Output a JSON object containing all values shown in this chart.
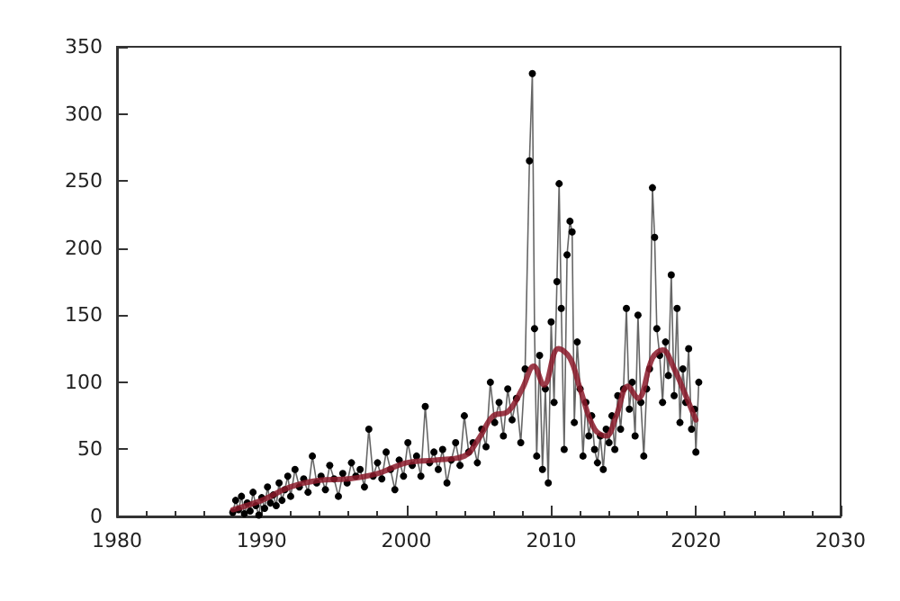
{
  "chart_data": {
    "type": "line",
    "xlim": [
      1980,
      2030
    ],
    "xticks": [
      1980,
      1990,
      2000,
      2010,
      2020,
      2030
    ],
    "ylim": [
      0,
      350
    ],
    "yticks": [
      0,
      50,
      100,
      150,
      200,
      250,
      300,
      350
    ],
    "grid": false,
    "series": [
      {
        "color": "#000000",
        "marker": "circle",
        "x": [
          1988.0,
          1988.2,
          1988.4,
          1988.6,
          1988.8,
          1989.0,
          1989.2,
          1989.4,
          1989.6,
          1989.8,
          1990.0,
          1990.2,
          1990.4,
          1990.6,
          1990.8,
          1991.0,
          1991.2,
          1991.4,
          1991.6,
          1991.8,
          1992.0,
          1992.3,
          1992.6,
          1992.9,
          1993.2,
          1993.5,
          1993.8,
          1994.1,
          1994.4,
          1994.7,
          1995.0,
          1995.3,
          1995.6,
          1995.9,
          1996.2,
          1996.5,
          1996.8,
          1997.1,
          1997.4,
          1997.7,
          1998.0,
          1998.3,
          1998.6,
          1998.9,
          1999.2,
          1999.5,
          1999.8,
          2000.1,
          2000.4,
          2000.7,
          2001.0,
          2001.3,
          2001.6,
          2001.9,
          2002.2,
          2002.5,
          2002.8,
          2003.1,
          2003.4,
          2003.7,
          2004.0,
          2004.3,
          2004.6,
          2004.9,
          2005.2,
          2005.5,
          2005.8,
          2006.1,
          2006.4,
          2006.7,
          2007.0,
          2007.3,
          2007.6,
          2007.9,
          2008.2,
          2008.5,
          2008.7,
          2008.85,
          2009.0,
          2009.2,
          2009.4,
          2009.6,
          2009.8,
          2010.0,
          2010.2,
          2010.4,
          2010.55,
          2010.7,
          2010.9,
          2011.1,
          2011.3,
          2011.45,
          2011.6,
          2011.8,
          2012.0,
          2012.2,
          2012.4,
          2012.6,
          2012.8,
          2013.0,
          2013.2,
          2013.4,
          2013.6,
          2013.8,
          2014.0,
          2014.2,
          2014.4,
          2014.6,
          2014.8,
          2015.0,
          2015.2,
          2015.4,
          2015.6,
          2015.8,
          2016.0,
          2016.2,
          2016.4,
          2016.6,
          2016.8,
          2017.0,
          2017.15,
          2017.3,
          2017.5,
          2017.7,
          2017.9,
          2018.1,
          2018.3,
          2018.5,
          2018.7,
          2018.9,
          2019.1,
          2019.3,
          2019.5,
          2019.7,
          2019.9,
          2020.0,
          2020.2
        ],
        "values": [
          3,
          12,
          5,
          15,
          2,
          10,
          4,
          18,
          8,
          1,
          14,
          6,
          22,
          10,
          16,
          8,
          25,
          12,
          20,
          30,
          15,
          35,
          22,
          28,
          18,
          45,
          25,
          30,
          20,
          38,
          28,
          15,
          32,
          25,
          40,
          30,
          35,
          22,
          65,
          30,
          40,
          28,
          48,
          35,
          20,
          42,
          30,
          55,
          38,
          45,
          30,
          82,
          40,
          48,
          35,
          50,
          25,
          42,
          55,
          38,
          75,
          48,
          55,
          40,
          65,
          52,
          100,
          70,
          85,
          60,
          95,
          72,
          88,
          55,
          110,
          265,
          330,
          140,
          45,
          120,
          35,
          95,
          25,
          145,
          85,
          175,
          248,
          155,
          50,
          195,
          220,
          212,
          70,
          130,
          95,
          45,
          85,
          60,
          75,
          50,
          40,
          60,
          35,
          65,
          55,
          75,
          50,
          90,
          65,
          95,
          155,
          80,
          100,
          60,
          150,
          85,
          45,
          95,
          110,
          245,
          208,
          140,
          120,
          85,
          130,
          105,
          180,
          90,
          155,
          70,
          110,
          85,
          125,
          65,
          80,
          48,
          100
        ]
      },
      {
        "color": "#8b1a2a",
        "marker": "none",
        "x": [
          1988,
          1990,
          1992,
          1994,
          1996,
          1998,
          2000,
          2002,
          2004,
          2005,
          2006,
          2007,
          2008,
          2008.8,
          2009.5,
          2010.5,
          2011.3,
          2012,
          2013,
          2013.8,
          2014.5,
          2015.3,
          2016,
          2017,
          2017.7,
          2018.5,
          2019.3,
          2020
        ],
        "values": [
          5,
          12,
          22,
          27,
          28,
          32,
          40,
          42,
          45,
          58,
          75,
          78,
          95,
          112,
          98,
          125,
          118,
          95,
          65,
          60,
          75,
          97,
          88,
          118,
          124,
          110,
          90,
          72
        ]
      }
    ]
  }
}
